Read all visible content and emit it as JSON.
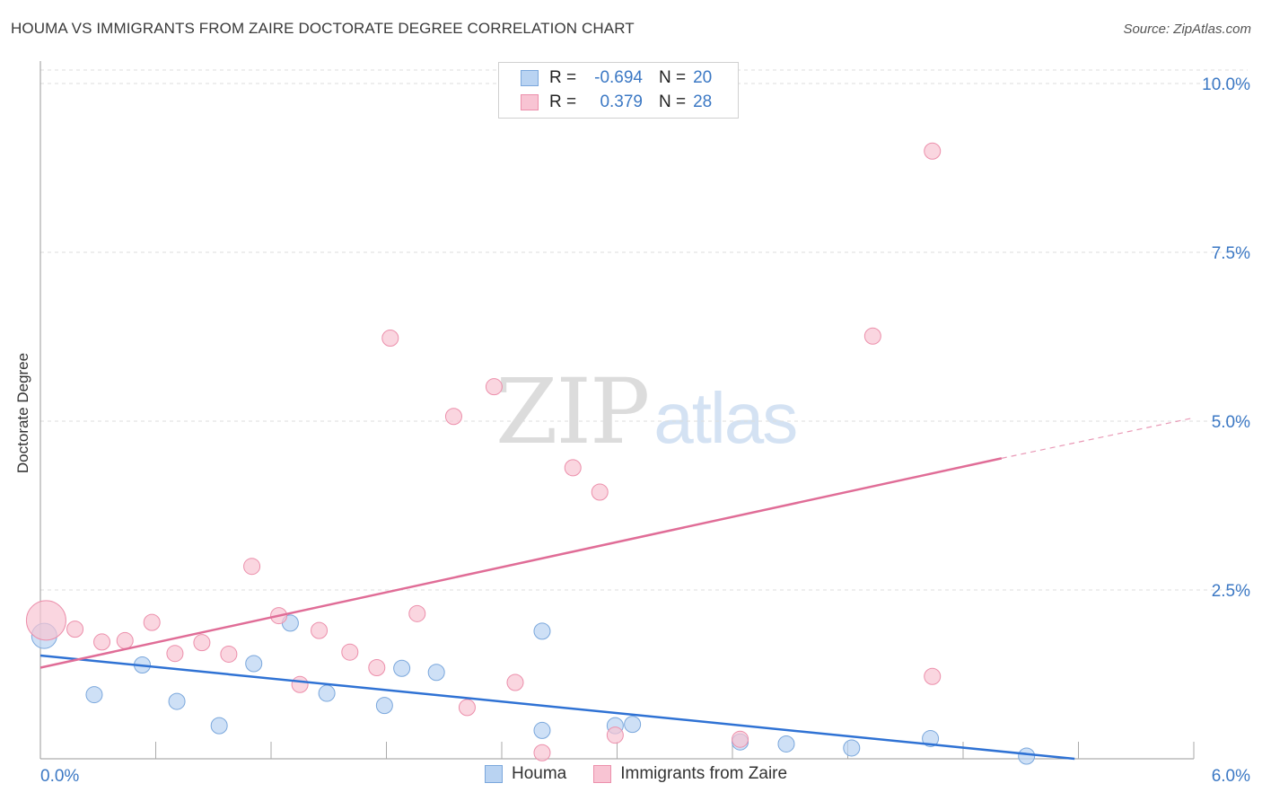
{
  "title": "HOUMA VS IMMIGRANTS FROM ZAIRE DOCTORATE DEGREE CORRELATION CHART",
  "source": "Source: ZipAtlas.com",
  "watermark": {
    "zip": "ZIP",
    "atlas": "atlas"
  },
  "legend_top": [
    {
      "label": "R =",
      "r": "-0.694",
      "n_label": "N =",
      "n": "20"
    },
    {
      "label": "R =",
      "r": "0.379",
      "n_label": "N =",
      "n": "28"
    }
  ],
  "legend_bottom": [
    "Houma",
    "Immigrants from Zaire"
  ],
  "colors": {
    "houma_fill": "#b9d3f2",
    "houma_stroke": "#7aa7dc",
    "houma_line": "#2f72d4",
    "zaire_fill": "#f8c4d3",
    "zaire_stroke": "#ec8fab",
    "zaire_line": "#e06d97",
    "tick_label": "#3b78c4",
    "grid": "#dddddd"
  },
  "chart_data": {
    "type": "scatter",
    "title": "HOUMA VS IMMIGRANTS FROM ZAIRE DOCTORATE DEGREE CORRELATION CHART",
    "xlabel": "",
    "ylabel": "Doctorate Degree",
    "xlim": [
      0,
      6
    ],
    "ylim": [
      0,
      10.2
    ],
    "x_tick_labels": [
      "0.0%",
      "6.0%"
    ],
    "y_ticks": [
      2.5,
      5.0,
      7.5,
      10.0
    ],
    "y_tick_labels": [
      "2.5%",
      "5.0%",
      "7.5%",
      "10.0%"
    ],
    "series": [
      {
        "name": "Houma",
        "r": -0.694,
        "n": 20,
        "points": [
          [
            0.02,
            1.82,
            14
          ],
          [
            0.28,
            0.95,
            9
          ],
          [
            0.53,
            1.39,
            9
          ],
          [
            0.71,
            0.85,
            9
          ],
          [
            0.93,
            0.49,
            9
          ],
          [
            1.11,
            1.41,
            9
          ],
          [
            1.3,
            2.01,
            9
          ],
          [
            1.49,
            0.97,
            9
          ],
          [
            1.79,
            0.79,
            9
          ],
          [
            1.88,
            1.34,
            9
          ],
          [
            2.06,
            1.28,
            9
          ],
          [
            2.61,
            0.42,
            9
          ],
          [
            2.61,
            1.89,
            9
          ],
          [
            2.99,
            0.49,
            9
          ],
          [
            3.08,
            0.51,
            9
          ],
          [
            3.64,
            0.25,
            9
          ],
          [
            3.88,
            0.22,
            9
          ],
          [
            4.22,
            0.16,
            9
          ],
          [
            4.63,
            0.3,
            9
          ],
          [
            5.13,
            0.04,
            9
          ]
        ],
        "trend": {
          "x0": 0.0,
          "y0": 1.53,
          "x1": 5.38,
          "y1": 0.0,
          "dash_to": null
        }
      },
      {
        "name": "Immigrants from Zaire",
        "r": 0.379,
        "n": 28,
        "points": [
          [
            0.03,
            2.05,
            22
          ],
          [
            0.18,
            1.92,
            9
          ],
          [
            0.32,
            1.73,
            9
          ],
          [
            0.44,
            1.75,
            9
          ],
          [
            0.58,
            2.02,
            9
          ],
          [
            0.7,
            1.56,
            9
          ],
          [
            0.84,
            1.72,
            9
          ],
          [
            0.98,
            1.55,
            9
          ],
          [
            1.1,
            2.85,
            9
          ],
          [
            1.24,
            2.12,
            9
          ],
          [
            1.35,
            1.1,
            9
          ],
          [
            1.45,
            1.9,
            9
          ],
          [
            1.61,
            1.58,
            9
          ],
          [
            1.75,
            1.35,
            9
          ],
          [
            1.82,
            6.23,
            9
          ],
          [
            1.96,
            2.15,
            9
          ],
          [
            2.15,
            5.07,
            9
          ],
          [
            2.22,
            0.76,
            9
          ],
          [
            2.36,
            5.51,
            9
          ],
          [
            2.47,
            1.13,
            9
          ],
          [
            2.61,
            0.09,
            9
          ],
          [
            2.77,
            4.31,
            9
          ],
          [
            2.91,
            3.95,
            9
          ],
          [
            2.99,
            0.35,
            9
          ],
          [
            3.64,
            0.29,
            9
          ],
          [
            4.33,
            6.26,
            9
          ],
          [
            4.64,
            1.22,
            9
          ],
          [
            4.64,
            9.0,
            9
          ]
        ],
        "trend": {
          "x0": 0.0,
          "y0": 1.35,
          "x1": 5.0,
          "y1": 4.45,
          "dash_to": [
            6.0,
            5.05
          ]
        }
      }
    ]
  }
}
